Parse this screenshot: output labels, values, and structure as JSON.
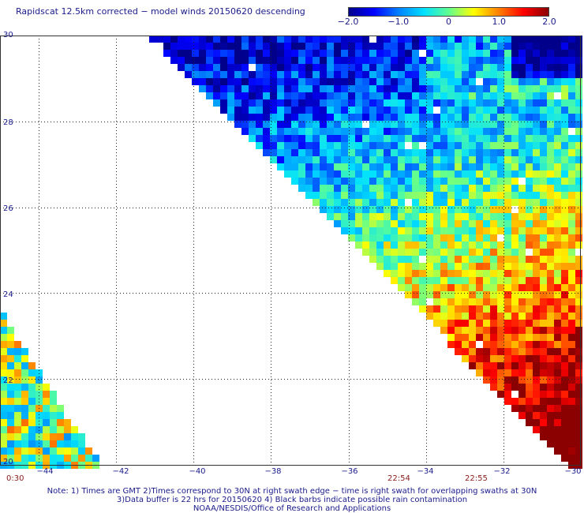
{
  "title": "Rapidscat 12.5km corrected − model winds 20150620 descending",
  "colorbar": {
    "ticks": [
      "−2.0",
      "−1.0",
      "0",
      "1.0",
      "2.0"
    ],
    "tick_values": [
      -2.0,
      -1.0,
      0,
      1.0,
      2.0
    ],
    "range": [
      -2.0,
      2.0
    ],
    "colors": [
      "#00008b",
      "#0000ff",
      "#0080ff",
      "#00e0ff",
      "#60ff90",
      "#ffff00",
      "#ff8000",
      "#ff0000",
      "#8b0000"
    ]
  },
  "axes": {
    "lat_labels": [
      "30",
      "28",
      "26",
      "24",
      "22",
      "20"
    ],
    "lon_labels": [
      "−44",
      "−42",
      "−40",
      "−38",
      "−36",
      "−34",
      "−32",
      "−30"
    ]
  },
  "swath_times": [
    "0:30",
    "22:54",
    "22:55"
  ],
  "notes": [
    "Note: 1) Times are GMT 2)Times correspond to 30N at right swath edge − time is right swath for overlapping swaths at 30N",
    "3)Data buffer is 22 hrs for 20150620 4) Black barbs indicate possible rain contamination",
    "NOAA/NESDIS/Office of Research and Applications"
  ],
  "map_data": {
    "type": "gridded wind speed difference",
    "units": "m/s",
    "lat_range": [
      20,
      30
    ],
    "lon_range": [
      -45,
      -30
    ],
    "swaths": [
      {
        "name": "main swath",
        "description": "values mostly -2 to -0.5 in the northwest, rising to 1.5 to 2+ in the southeast near -32 to -30, 20 to 24"
      },
      {
        "name": "west swath",
        "description": "values mostly -1.0 to 1.0 near -45 to -43, 20 to 23.5"
      }
    ]
  }
}
